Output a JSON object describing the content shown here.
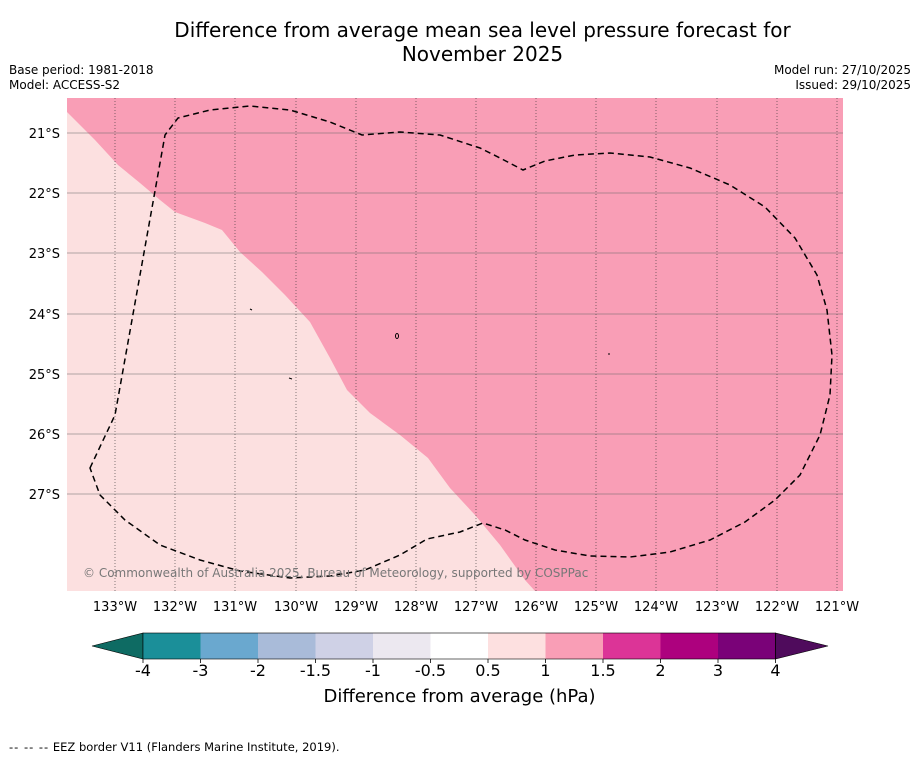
{
  "title": {
    "line1": "Difference from average mean sea level pressure forecast for",
    "line2": "November 2025"
  },
  "meta_left": {
    "base_period": "Base period: 1981-2018",
    "model": "Model: ACCESS-S2"
  },
  "meta_right": {
    "model_run": "Model run: 27/10/2025",
    "issued": "Issued: 29/10/2025"
  },
  "map": {
    "latitude_labels": [
      "21°S",
      "22°S",
      "23°S",
      "24°S",
      "25°S",
      "26°S",
      "27°S"
    ],
    "longitude_labels": [
      "133°W",
      "132°W",
      "131°W",
      "130°W",
      "129°W",
      "128°W",
      "127°W",
      "126°W",
      "125°W",
      "124°W",
      "123°W",
      "122°W",
      "121°W"
    ],
    "region_low_anomaly_color": "#fce0e0",
    "region_high_anomaly_color": "#f99eb6",
    "copyright": "© Commonwealth of Australia 2025, Bureau of Meteorology, supported by COSPPac",
    "eez_border_style": "dashed"
  },
  "colorbar": {
    "tick_labels": [
      "-4",
      "-3",
      "-2",
      "-1.5",
      "-1",
      "-0.5",
      "0.5",
      "1",
      "1.5",
      "2",
      "3",
      "4"
    ],
    "under_color": "#0e6b63",
    "over_color": "#4f0b5c",
    "bins": [
      {
        "from": "-4",
        "to": "-3",
        "color": "#1b8f99"
      },
      {
        "from": "-3",
        "to": "-2",
        "color": "#6aa8cf"
      },
      {
        "from": "-2",
        "to": "-1.5",
        "color": "#a9bbd9"
      },
      {
        "from": "-1.5",
        "to": "-1",
        "color": "#cfd1e6"
      },
      {
        "from": "-1",
        "to": "-0.5",
        "color": "#ece8f0"
      },
      {
        "from": "-0.5",
        "to": "0.5",
        "color": "#ffffff"
      },
      {
        "from": "0.5",
        "to": "1",
        "color": "#fde0e0"
      },
      {
        "from": "1",
        "to": "1.5",
        "color": "#f99eb6"
      },
      {
        "from": "1.5",
        "to": "2",
        "color": "#dc3497"
      },
      {
        "from": "2",
        "to": "3",
        "color": "#ad017e"
      },
      {
        "from": "3",
        "to": "4",
        "color": "#7a0278"
      }
    ],
    "label": "Difference from average (hPa)"
  },
  "footnote": {
    "dash": "-- -- --",
    "text": "EEZ border V11 (Flanders Marine Institute, 2019)."
  }
}
